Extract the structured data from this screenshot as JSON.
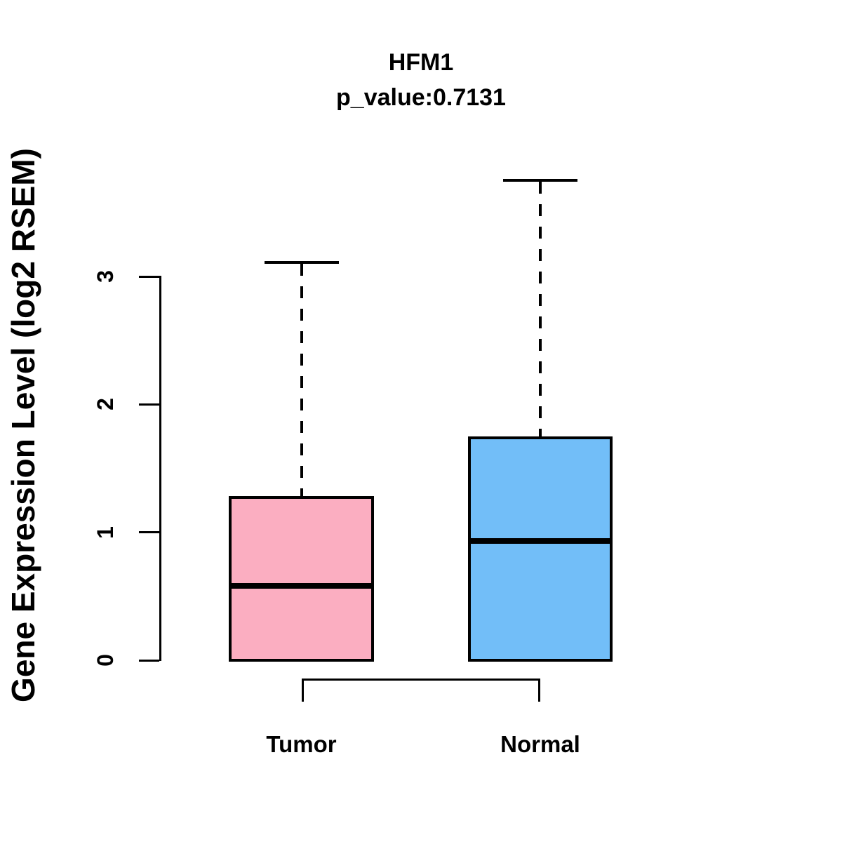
{
  "title": "HFM1",
  "subtitle": "p_value:0.7131",
  "ylabel": "Gene Expression Level (log2 RSEM)",
  "colors": {
    "tumor_fill": "#FBAEC1",
    "normal_fill": "#72BEF8",
    "stroke": "#000000",
    "background": "#FFFFFF"
  },
  "chart_data": {
    "type": "boxplot",
    "title": "HFM1",
    "subtitle": "p_value:0.7131",
    "ylabel": "Gene Expression Level (log2 RSEM)",
    "categories": [
      "Tumor",
      "Normal"
    ],
    "series": [
      {
        "name": "Tumor",
        "color": "#FBAEC1",
        "min": 0,
        "q1": 0,
        "median": 0.58,
        "q3": 1.27,
        "max": 3.11
      },
      {
        "name": "Normal",
        "color": "#72BEF8",
        "min": 0,
        "q1": 0,
        "median": 0.93,
        "q3": 1.74,
        "max": 3.75
      }
    ],
    "yticks": [
      0,
      1,
      2,
      3
    ],
    "ylim": [
      0,
      3.75
    ],
    "whisker_style": "dashed",
    "grid": false,
    "legend": "none",
    "comparison_bracket": {
      "between": [
        "Tumor",
        "Normal"
      ]
    }
  }
}
